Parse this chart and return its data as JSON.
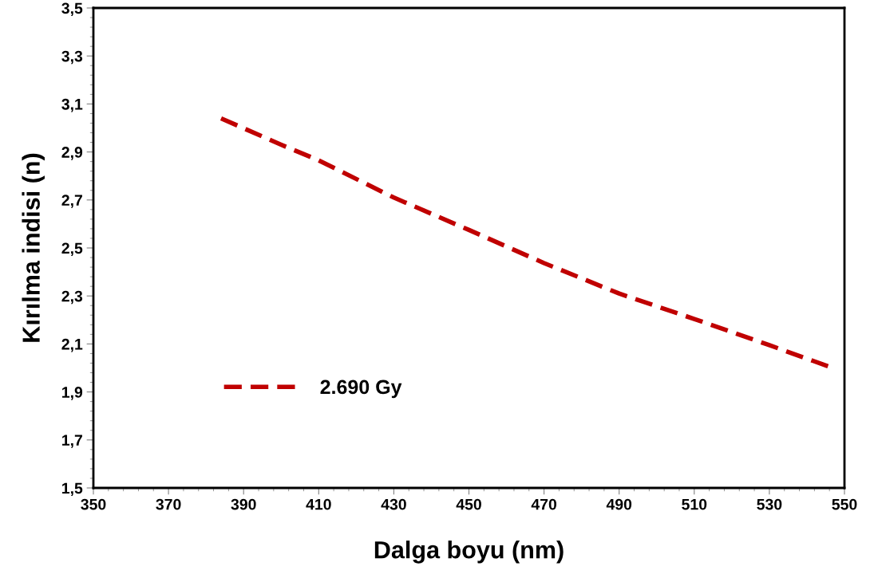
{
  "chart_data": {
    "type": "line",
    "xlabel": "Dalga boyu (nm)",
    "ylabel": "Kırılma indisi (n)",
    "series": [
      {
        "name": "2.690 Gy",
        "color": "#c00000",
        "x": [
          384,
          400,
          410,
          430,
          450,
          470,
          490,
          510,
          530,
          546
        ],
        "values": [
          3.04,
          2.93,
          2.865,
          2.71,
          2.575,
          2.437,
          2.31,
          2.204,
          2.095,
          2.005
        ]
      }
    ],
    "xlim": [
      350,
      550
    ],
    "xticks": [
      350,
      370,
      390,
      410,
      430,
      450,
      470,
      490,
      510,
      530,
      550
    ],
    "ylim": [
      1.5,
      3.5
    ],
    "yticks": [
      {
        "value": 1.5,
        "label": "1,5"
      },
      {
        "value": 1.7,
        "label": "1,7"
      },
      {
        "value": 1.9,
        "label": "1,9"
      },
      {
        "value": 2.1,
        "label": "2,1"
      },
      {
        "value": 2.3,
        "label": "2,3"
      },
      {
        "value": 2.5,
        "label": "2,5"
      },
      {
        "value": 2.7,
        "label": "2,7"
      },
      {
        "value": 2.9,
        "label": "2,9"
      },
      {
        "value": 3.1,
        "label": "3,1"
      },
      {
        "value": 3.3,
        "label": "3,3"
      },
      {
        "value": 3.5,
        "label": "3,5"
      }
    ],
    "line_style": "dashed",
    "marker": "none",
    "grid": false,
    "legend": "lower left"
  }
}
